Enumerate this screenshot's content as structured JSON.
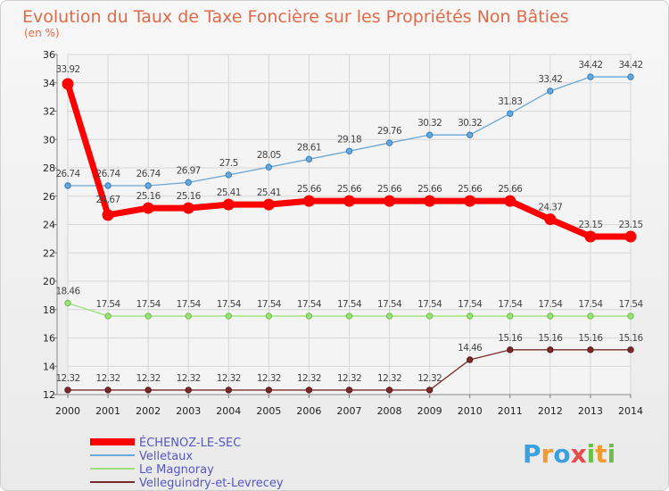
{
  "chart_data": {
    "type": "line",
    "title": "Evolution du Taux de Taxe Foncière sur les Propriétés Non Bâties",
    "subtitle": "(en %)",
    "x": [
      "2000",
      "2001",
      "2002",
      "2003",
      "2004",
      "2005",
      "2006",
      "2007",
      "2008",
      "2009",
      "2010",
      "2011",
      "2012",
      "2013",
      "2014"
    ],
    "ylim": [
      12,
      36
    ],
    "yticks": [
      12,
      14,
      16,
      18,
      20,
      22,
      24,
      26,
      28,
      30,
      32,
      34,
      36
    ],
    "grid": true,
    "legend_position": "bottom-left",
    "series": [
      {
        "name": "ÉCHENOZ-LE-SEC",
        "color": "#ff0000",
        "values": [
          33.92,
          24.67,
          25.16,
          25.16,
          25.41,
          25.41,
          25.66,
          25.66,
          25.66,
          25.66,
          25.66,
          25.66,
          24.37,
          23.15,
          23.15
        ],
        "labels": [
          "33.92",
          "24.67",
          "25.16",
          "25.16",
          "25.41",
          "25.41",
          "25.66",
          "25.66",
          "25.66",
          "25.66",
          "25.66",
          "25.66",
          "24.37",
          "23.15",
          "23.15"
        ]
      },
      {
        "name": "Velletaux",
        "color": "#6aa6d6",
        "values": [
          26.74,
          26.74,
          26.74,
          26.97,
          27.5,
          28.05,
          28.61,
          29.18,
          29.76,
          30.32,
          30.32,
          31.83,
          33.42,
          34.42,
          34.42
        ],
        "labels": [
          "26.74",
          "26.74",
          "26.74",
          "26.97",
          "27.5",
          "28.05",
          "28.61",
          "29.18",
          "29.76",
          "30.32",
          "30.32",
          "31.83",
          "33.42",
          "34.42",
          "34.42"
        ]
      },
      {
        "name": "Le Magnoray",
        "color": "#9be07a",
        "values": [
          18.46,
          17.54,
          17.54,
          17.54,
          17.54,
          17.54,
          17.54,
          17.54,
          17.54,
          17.54,
          17.54,
          17.54,
          17.54,
          17.54,
          17.54
        ],
        "labels": [
          "18.46",
          "17.54",
          "17.54",
          "17.54",
          "17.54",
          "17.54",
          "17.54",
          "17.54",
          "17.54",
          "17.54",
          "17.54",
          "17.54",
          "17.54",
          "17.54",
          "17.54"
        ]
      },
      {
        "name": "Velleguindry-et-Levrecey",
        "color": "#7a2a2a",
        "values": [
          12.32,
          12.32,
          12.32,
          12.32,
          12.32,
          12.32,
          12.32,
          12.32,
          12.32,
          12.32,
          14.46,
          15.16,
          15.16,
          15.16,
          15.16
        ],
        "labels": [
          "12.32",
          "12.32",
          "12.32",
          "12.32",
          "12.32",
          "12.32",
          "12.32",
          "12.32",
          "12.32",
          "12.32",
          "14.46",
          "15.16",
          "15.16",
          "15.16",
          "15.16"
        ]
      }
    ]
  },
  "branding": {
    "letters": [
      "P",
      "r",
      "o",
      "x",
      "i",
      "t",
      "i"
    ],
    "colors": [
      "#3aa0e0",
      "#f29a2e",
      "#3aa0e0",
      "#e84b4b",
      "#6cc04a",
      "#f29a2e",
      "#6cc04a"
    ]
  }
}
